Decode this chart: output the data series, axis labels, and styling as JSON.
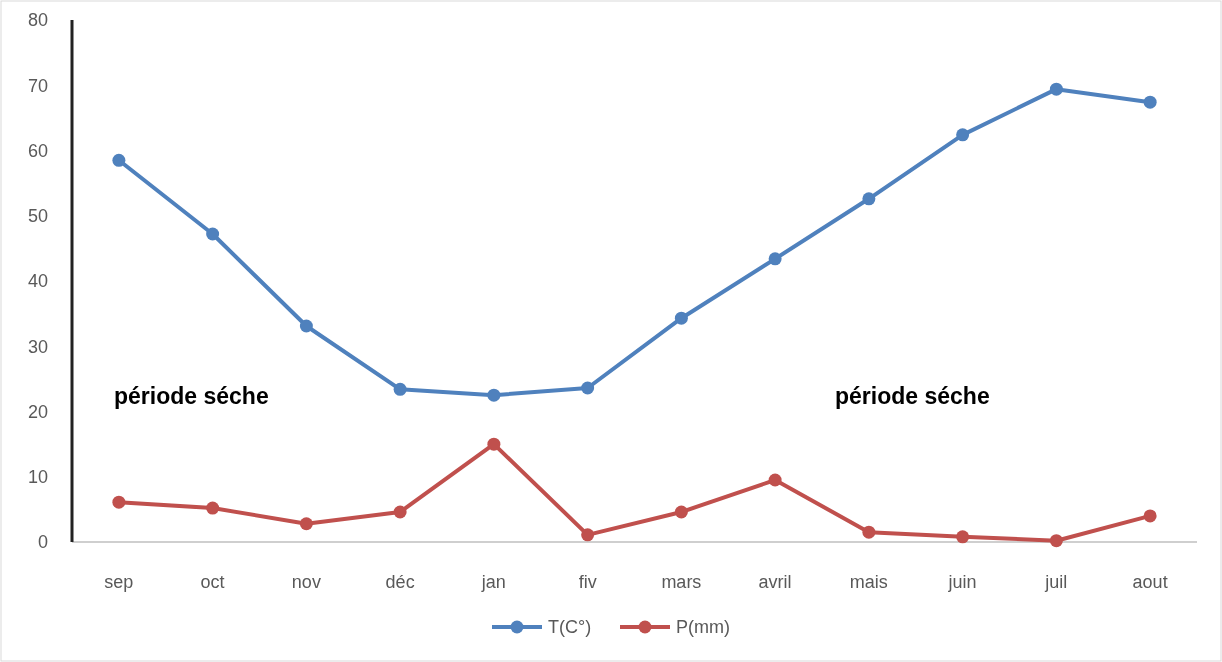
{
  "chart_data": {
    "type": "line",
    "categories": [
      "sep",
      "oct",
      "nov",
      "déc",
      "jan",
      "fiv",
      "mars",
      "avril",
      "mais",
      "juin",
      "juil",
      "aout"
    ],
    "series": [
      {
        "name": "T(C°)",
        "color": "#4f81bd",
        "values": [
          58.5,
          47.2,
          33.1,
          23.4,
          22.5,
          23.6,
          34.3,
          43.4,
          52.6,
          62.4,
          69.4,
          67.4
        ]
      },
      {
        "name": "P(mm)",
        "color": "#c0504d",
        "values": [
          6.1,
          5.2,
          2.8,
          4.6,
          15.0,
          1.1,
          4.6,
          9.5,
          1.5,
          0.8,
          0.2,
          4.0
        ]
      }
    ],
    "ylim": [
      0,
      80
    ],
    "yticks": [
      0,
      10,
      20,
      30,
      40,
      50,
      60,
      70,
      80
    ],
    "grid": false,
    "legend": "bottom",
    "marker": "circle",
    "line_style": "solid",
    "annotations": [
      "période séche",
      "période séche"
    ]
  }
}
